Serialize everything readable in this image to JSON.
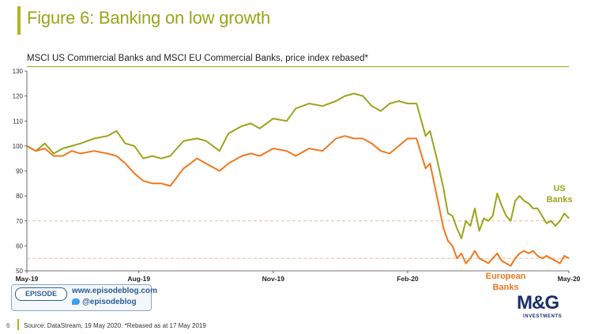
{
  "page": {
    "title": "Figure 6: Banking on low growth",
    "subtitle": "MSCI US Commercial Banks and MSCI EU Commercial Banks, price index rebased*",
    "page_number": "6",
    "source": "Source: DataStream, 19 May 2020. *Rebased as at 17 May 2019"
  },
  "branding": {
    "episode_logo": "EPISODE",
    "website": "www.episodeblog.com",
    "twitter": "@episodeblog",
    "mg_logo": "M&G",
    "mg_sub": "INVESTMENTS"
  },
  "colors": {
    "us": "#9aa51a",
    "eu": "#f0781e",
    "ref_line": "#f2b8a0",
    "grid_accent": "#9aa51a"
  },
  "chart_data": {
    "type": "line",
    "title": "MSCI US Commercial Banks and MSCI EU Commercial Banks, price index rebased*",
    "xlabel": "",
    "ylabel": "",
    "ylim": [
      50,
      130
    ],
    "yticks": [
      50,
      60,
      70,
      80,
      90,
      100,
      110,
      120,
      130
    ],
    "x_range": [
      0,
      12.1
    ],
    "xticks": [
      {
        "label": "May-19",
        "x": 0
      },
      {
        "label": "Aug-19",
        "x": 2.5
      },
      {
        "label": "Nov-19",
        "x": 5.5
      },
      {
        "label": "Feb-20",
        "x": 8.5
      },
      {
        "label": "May-20",
        "x": 12.1
      }
    ],
    "reference_lines": [
      70,
      55
    ],
    "series": [
      {
        "name": "US Banks",
        "label": [
          "US",
          "Banks"
        ],
        "points": [
          [
            0,
            100
          ],
          [
            0.2,
            98
          ],
          [
            0.4,
            101
          ],
          [
            0.6,
            97
          ],
          [
            0.8,
            99
          ],
          [
            1.0,
            100
          ],
          [
            1.2,
            101
          ],
          [
            1.5,
            103
          ],
          [
            1.8,
            104
          ],
          [
            2.0,
            106
          ],
          [
            2.2,
            101
          ],
          [
            2.4,
            100
          ],
          [
            2.6,
            95
          ],
          [
            2.8,
            96
          ],
          [
            3.0,
            95
          ],
          [
            3.2,
            96
          ],
          [
            3.5,
            102
          ],
          [
            3.8,
            103
          ],
          [
            4.0,
            102
          ],
          [
            4.3,
            98
          ],
          [
            4.5,
            105
          ],
          [
            4.8,
            108
          ],
          [
            5.0,
            109
          ],
          [
            5.2,
            107
          ],
          [
            5.5,
            111
          ],
          [
            5.8,
            110
          ],
          [
            6.0,
            115
          ],
          [
            6.3,
            117
          ],
          [
            6.6,
            116
          ],
          [
            6.9,
            118
          ],
          [
            7.1,
            120
          ],
          [
            7.3,
            121
          ],
          [
            7.5,
            120
          ],
          [
            7.7,
            116
          ],
          [
            7.9,
            114
          ],
          [
            8.1,
            117
          ],
          [
            8.3,
            118
          ],
          [
            8.5,
            117
          ],
          [
            8.7,
            117
          ],
          [
            8.9,
            104
          ],
          [
            9.0,
            106
          ],
          [
            9.15,
            95
          ],
          [
            9.3,
            83
          ],
          [
            9.4,
            73
          ],
          [
            9.5,
            72
          ],
          [
            9.6,
            67
          ],
          [
            9.7,
            63
          ],
          [
            9.8,
            70
          ],
          [
            9.9,
            68
          ],
          [
            10.0,
            75
          ],
          [
            10.1,
            66
          ],
          [
            10.2,
            71
          ],
          [
            10.3,
            70
          ],
          [
            10.4,
            72
          ],
          [
            10.5,
            81
          ],
          [
            10.6,
            76
          ],
          [
            10.7,
            72
          ],
          [
            10.8,
            70
          ],
          [
            10.9,
            78
          ],
          [
            11.0,
            80
          ],
          [
            11.1,
            78
          ],
          [
            11.2,
            77
          ],
          [
            11.3,
            75
          ],
          [
            11.4,
            75
          ],
          [
            11.5,
            72
          ],
          [
            11.6,
            69
          ],
          [
            11.7,
            70
          ],
          [
            11.8,
            68
          ],
          [
            11.9,
            70
          ],
          [
            12.0,
            73
          ],
          [
            12.1,
            71
          ]
        ]
      },
      {
        "name": "European Banks",
        "label": [
          "European",
          "Banks"
        ],
        "points": [
          [
            0,
            100
          ],
          [
            0.2,
            98
          ],
          [
            0.4,
            99
          ],
          [
            0.6,
            96
          ],
          [
            0.8,
            96
          ],
          [
            1.0,
            98
          ],
          [
            1.2,
            97
          ],
          [
            1.5,
            98
          ],
          [
            1.8,
            97
          ],
          [
            2.0,
            96
          ],
          [
            2.2,
            93
          ],
          [
            2.4,
            89
          ],
          [
            2.6,
            86
          ],
          [
            2.8,
            85
          ],
          [
            3.0,
            85
          ],
          [
            3.2,
            84
          ],
          [
            3.5,
            91
          ],
          [
            3.8,
            95
          ],
          [
            4.0,
            93
          ],
          [
            4.3,
            90
          ],
          [
            4.5,
            93
          ],
          [
            4.8,
            96
          ],
          [
            5.0,
            97
          ],
          [
            5.2,
            96
          ],
          [
            5.5,
            99
          ],
          [
            5.8,
            98
          ],
          [
            6.0,
            96
          ],
          [
            6.3,
            99
          ],
          [
            6.6,
            98
          ],
          [
            6.9,
            103
          ],
          [
            7.1,
            104
          ],
          [
            7.3,
            103
          ],
          [
            7.5,
            103
          ],
          [
            7.7,
            101
          ],
          [
            7.9,
            98
          ],
          [
            8.1,
            97
          ],
          [
            8.3,
            100
          ],
          [
            8.5,
            103
          ],
          [
            8.7,
            103
          ],
          [
            8.9,
            91
          ],
          [
            9.0,
            93
          ],
          [
            9.15,
            80
          ],
          [
            9.3,
            67
          ],
          [
            9.4,
            62
          ],
          [
            9.5,
            60
          ],
          [
            9.6,
            55
          ],
          [
            9.7,
            57
          ],
          [
            9.8,
            53
          ],
          [
            9.9,
            55
          ],
          [
            10.0,
            58
          ],
          [
            10.1,
            55
          ],
          [
            10.2,
            54
          ],
          [
            10.3,
            53
          ],
          [
            10.4,
            55
          ],
          [
            10.5,
            57
          ],
          [
            10.6,
            54
          ],
          [
            10.7,
            53
          ],
          [
            10.8,
            52
          ],
          [
            10.9,
            55
          ],
          [
            11.0,
            57
          ],
          [
            11.1,
            58
          ],
          [
            11.2,
            57
          ],
          [
            11.3,
            58
          ],
          [
            11.4,
            56
          ],
          [
            11.5,
            55
          ],
          [
            11.6,
            56
          ],
          [
            11.7,
            55
          ],
          [
            11.8,
            54
          ],
          [
            11.9,
            53
          ],
          [
            12.0,
            56
          ],
          [
            12.1,
            55
          ]
        ]
      }
    ]
  }
}
